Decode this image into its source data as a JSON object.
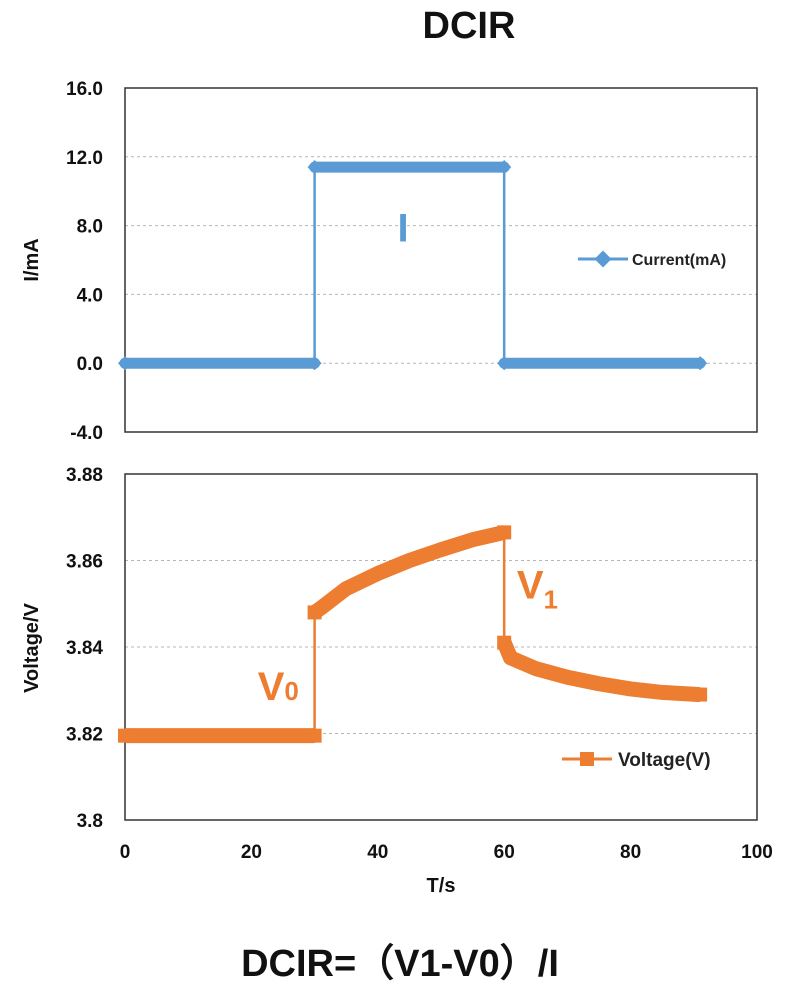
{
  "chart_data": [
    {
      "type": "line",
      "title": "DCIR",
      "ylabel": "I/mA",
      "xlabel": "",
      "ylim": [
        -4,
        16
      ],
      "xlim": [
        0,
        100
      ],
      "yticks": [
        "16.0",
        "12.0",
        "8.0",
        "4.0",
        "0.0",
        "-4.0"
      ],
      "grid": true,
      "legend": "right",
      "series": [
        {
          "name": "Current(mA)",
          "color": "#5b9bd5",
          "x": [
            0,
            30,
            30,
            60,
            60,
            91
          ],
          "y": [
            0,
            0,
            11.4,
            11.4,
            0,
            0
          ]
        }
      ],
      "annotations": [
        {
          "text": "I",
          "x": 44,
          "y": 7.9
        }
      ]
    },
    {
      "type": "line",
      "ylabel": "Voltage/V",
      "xlabel": "T/s",
      "ylim": [
        3.8,
        3.88
      ],
      "xlim": [
        0,
        100
      ],
      "yticks": [
        "3.88",
        "3.86",
        "3.84",
        "3.82",
        "3.8"
      ],
      "xticks": [
        "0",
        "20",
        "40",
        "60",
        "80",
        "100"
      ],
      "grid": true,
      "legend": "bottom-right",
      "series": [
        {
          "name": "Voltage(V)",
          "color": "#ed7d31",
          "x": [
            0,
            30,
            30,
            31,
            35,
            40,
            45,
            50,
            55,
            60,
            60,
            61,
            65,
            70,
            75,
            80,
            85,
            91
          ],
          "y": [
            3.8195,
            3.8195,
            3.848,
            3.849,
            3.8535,
            3.857,
            3.86,
            3.8625,
            3.8648,
            3.8665,
            3.841,
            3.8375,
            3.835,
            3.833,
            3.8315,
            3.8303,
            3.8295,
            3.829
          ]
        }
      ],
      "annotations": [
        {
          "text": "V",
          "sub": "0",
          "x": 21,
          "y": 3.831
        },
        {
          "text": "V",
          "sub": "1",
          "x": 62,
          "y": 3.8545
        }
      ]
    }
  ],
  "formula": "DCIR=（V1-V0）/I"
}
